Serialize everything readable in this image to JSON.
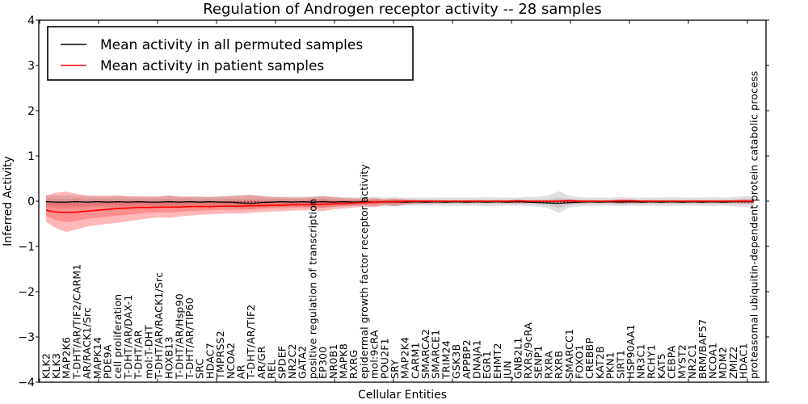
{
  "chart_data": {
    "type": "line",
    "title": "Regulation of Androgen receptor activity -- 28 samples",
    "n_samples": 28,
    "xlabel": "Cellular Entities",
    "ylabel": "Inferred Activity",
    "ylim": [
      -4,
      4
    ],
    "yticks": [
      4,
      3,
      2,
      1,
      0,
      -1,
      -2,
      -3,
      -4
    ],
    "x_axis_tick_count": 13,
    "grid": false,
    "legend_position": "upper left",
    "zero_line": {
      "style": "dotted",
      "color": "#000000",
      "y": -0.02
    },
    "categories": [
      "KLK2",
      "KLK3",
      "MAP2K6",
      "T-DHT/AR/TIF2/CARM1",
      "AR/RACK1/Src",
      "MAPK14",
      "PDE9A",
      "cell proliferation",
      "T-DHT/AR/DAX-1",
      "T-DHT/AR",
      "mol:T-DHT",
      "T-DHT/AR/RACK1/Src",
      "HOXB13",
      "T-DHT/AR/Hsp90",
      "T-DHT/AR/TIP60",
      "SRC",
      "HDAC7",
      "TMPRSS2",
      "NCOA2",
      "AR",
      "T-DHT/AR/TIF2",
      "AR/GR",
      "REL",
      "SPDEF",
      "NR2C2",
      "GATA2",
      "positive regulation of transcription",
      "EP300",
      "NR0B1",
      "MAPK8",
      "RXRG",
      "epidermal growth factor receptor activity",
      "mol:9cRA",
      "POU2F1",
      "SRY",
      "MAP2K4",
      "CARM1",
      "SMARCA2",
      "SMARCE1",
      "TRIM24",
      "GSK3B",
      "APPBP2",
      "DNAJA1",
      "EGR1",
      "EHMT2",
      "JUN",
      "GNB2L1",
      "RXRs/9cRA",
      "SENP1",
      "RXRA",
      "RXRB",
      "SMARCC1",
      "FOXO1",
      "CREBBP",
      "KAT2B",
      "PKN1",
      "SIRT1",
      "HSP90AA1",
      "NR3C1",
      "RCHY1",
      "KAT5",
      "CEBPA",
      "MYST2",
      "NR2C1",
      "BRM/BAF57",
      "NCOA1",
      "MDM2",
      "ZMIZ2",
      "HDAC1",
      "proteasomal ubiquitin-dependent protein catabolic process"
    ],
    "series": [
      {
        "name": "Mean activity in all permuted samples",
        "color": "#000000",
        "line_width": 1.2,
        "band_color": "#000000",
        "band_opacity": 0.12,
        "values": [
          -0.01,
          -0.02,
          -0.02,
          -0.01,
          -0.02,
          -0.01,
          -0.02,
          -0.01,
          -0.02,
          -0.01,
          -0.02,
          -0.02,
          -0.01,
          -0.02,
          -0.01,
          -0.02,
          -0.01,
          -0.02,
          -0.02,
          -0.04,
          -0.05,
          -0.03,
          -0.02,
          -0.01,
          -0.02,
          -0.01,
          -0.02,
          -0.01,
          -0.02,
          -0.01,
          -0.02,
          -0.01,
          -0.02,
          -0.01,
          -0.01,
          -0.02,
          -0.01,
          -0.02,
          -0.01,
          -0.02,
          -0.01,
          -0.02,
          -0.01,
          -0.02,
          -0.01,
          -0.02,
          -0.01,
          -0.02,
          -0.03,
          -0.04,
          -0.05,
          -0.03,
          -0.02,
          -0.01,
          -0.02,
          -0.01,
          -0.02,
          -0.01,
          -0.02,
          -0.01,
          -0.02,
          -0.01,
          -0.02,
          -0.01,
          -0.02,
          -0.01,
          -0.02,
          -0.01,
          -0.01,
          -0.01
        ],
        "band_upper": [
          0.12,
          0.13,
          0.13,
          0.12,
          0.11,
          0.1,
          0.1,
          0.11,
          0.1,
          0.1,
          0.1,
          0.11,
          0.12,
          0.1,
          0.1,
          0.1,
          0.1,
          0.11,
          0.12,
          0.14,
          0.15,
          0.12,
          0.11,
          0.1,
          0.1,
          0.1,
          0.11,
          0.12,
          0.1,
          0.09,
          0.09,
          0.09,
          0.1,
          0.08,
          0.09,
          0.08,
          0.08,
          0.08,
          0.08,
          0.08,
          0.08,
          0.08,
          0.08,
          0.09,
          0.08,
          0.08,
          0.08,
          0.09,
          0.1,
          0.13,
          0.22,
          0.12,
          0.09,
          0.08,
          0.08,
          0.08,
          0.09,
          0.08,
          0.08,
          0.08,
          0.08,
          0.09,
          0.08,
          0.08,
          0.08,
          0.09,
          0.08,
          0.09,
          0.11,
          0.11
        ],
        "band_lower": [
          -0.14,
          -0.15,
          -0.15,
          -0.14,
          -0.13,
          -0.12,
          -0.12,
          -0.13,
          -0.12,
          -0.12,
          -0.12,
          -0.13,
          -0.14,
          -0.12,
          -0.12,
          -0.12,
          -0.12,
          -0.13,
          -0.14,
          -0.16,
          -0.17,
          -0.14,
          -0.13,
          -0.12,
          -0.12,
          -0.12,
          -0.13,
          -0.14,
          -0.12,
          -0.11,
          -0.11,
          -0.11,
          -0.12,
          -0.1,
          -0.11,
          -0.1,
          -0.1,
          -0.1,
          -0.1,
          -0.1,
          -0.1,
          -0.1,
          -0.1,
          -0.11,
          -0.1,
          -0.1,
          -0.1,
          -0.11,
          -0.12,
          -0.16,
          -0.26,
          -0.14,
          -0.11,
          -0.1,
          -0.1,
          -0.1,
          -0.11,
          -0.1,
          -0.1,
          -0.1,
          -0.1,
          -0.11,
          -0.1,
          -0.1,
          -0.1,
          -0.11,
          -0.1,
          -0.11,
          -0.13,
          -0.13
        ]
      },
      {
        "name": "Mean activity in patient samples",
        "color": "#ff0000",
        "line_width": 1.6,
        "band_color": "#ff0000",
        "band_opacity": 0.28,
        "values": [
          -0.2,
          -0.24,
          -0.25,
          -0.24,
          -0.22,
          -0.2,
          -0.18,
          -0.16,
          -0.15,
          -0.14,
          -0.14,
          -0.13,
          -0.13,
          -0.13,
          -0.12,
          -0.12,
          -0.12,
          -0.11,
          -0.11,
          -0.11,
          -0.1,
          -0.1,
          -0.09,
          -0.09,
          -0.08,
          -0.08,
          -0.08,
          -0.07,
          -0.06,
          -0.05,
          -0.04,
          -0.03,
          -0.02,
          -0.01,
          -0.01,
          0,
          0,
          0,
          0,
          0,
          0,
          0,
          0,
          0,
          0,
          0,
          0.01,
          0,
          0,
          0,
          0,
          0.01,
          0,
          0,
          0,
          0,
          0.01,
          0.01,
          0,
          0,
          0,
          0,
          0,
          0,
          0,
          0,
          0,
          0,
          0,
          0
        ],
        "band_upper": [
          0.13,
          0.19,
          0.21,
          0.16,
          0.13,
          0.12,
          0.12,
          0.13,
          0.11,
          0.11,
          0.1,
          0.1,
          0.13,
          0.1,
          0.1,
          0.1,
          0.09,
          0.1,
          0.11,
          0.12,
          0.13,
          0.11,
          0.09,
          0.09,
          0.08,
          0.08,
          0.09,
          0.11,
          0.09,
          0.07,
          0.06,
          0.05,
          0.07,
          0.04,
          0.06,
          0.04,
          0.03,
          0.03,
          0.02,
          0.02,
          0.02,
          0.02,
          0.02,
          0.02,
          0.02,
          0.02,
          0.03,
          0.02,
          0.02,
          0.02,
          0.03,
          0.04,
          0.03,
          0.02,
          0.02,
          0.02,
          0.04,
          0.03,
          0.02,
          0.02,
          0.02,
          0.02,
          0.02,
          0.02,
          0.02,
          0.02,
          0.02,
          0.03,
          0.04,
          0.04
        ],
        "band_lower": [
          -0.46,
          -0.6,
          -0.68,
          -0.62,
          -0.56,
          -0.53,
          -0.5,
          -0.48,
          -0.44,
          -0.41,
          -0.38,
          -0.36,
          -0.37,
          -0.34,
          -0.32,
          -0.3,
          -0.29,
          -0.28,
          -0.27,
          -0.27,
          -0.26,
          -0.24,
          -0.23,
          -0.22,
          -0.21,
          -0.2,
          -0.2,
          -0.22,
          -0.18,
          -0.16,
          -0.14,
          -0.12,
          -0.13,
          -0.09,
          -0.11,
          -0.08,
          -0.06,
          -0.05,
          -0.05,
          -0.04,
          -0.04,
          -0.04,
          -0.04,
          -0.04,
          -0.04,
          -0.04,
          -0.05,
          -0.04,
          -0.04,
          -0.04,
          -0.05,
          -0.06,
          -0.05,
          -0.04,
          -0.04,
          -0.04,
          -0.06,
          -0.05,
          -0.04,
          -0.04,
          -0.04,
          -0.04,
          -0.04,
          -0.04,
          -0.04,
          -0.04,
          -0.04,
          -0.04,
          -0.05,
          -0.05
        ]
      }
    ]
  }
}
